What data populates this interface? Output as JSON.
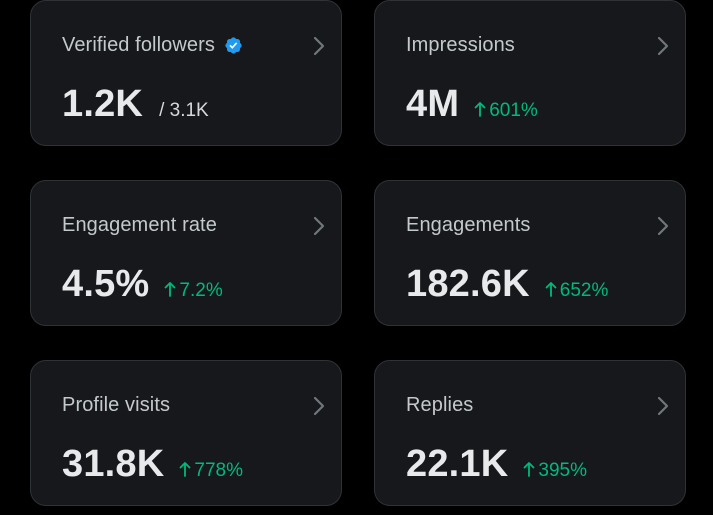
{
  "colors": {
    "background": "#000000",
    "card": "#16181c",
    "card_border": "#2f3336",
    "title": "#c4c9cc",
    "value": "#e7e9ea",
    "positive": "#00ba7c",
    "verified": "#1d9bf0"
  },
  "cards": [
    {
      "title": "Verified followers",
      "value": "1.2K",
      "sub": "/ 3.1K",
      "icon": "verified-badge-icon"
    },
    {
      "title": "Impressions",
      "value": "4M",
      "delta": "601%",
      "delta_icon": "arrow-up-icon"
    },
    {
      "title": "Engagement rate",
      "value": "4.5%",
      "delta": "7.2%",
      "delta_icon": "arrow-up-icon"
    },
    {
      "title": "Engagements",
      "value": "182.6K",
      "delta": "652%",
      "delta_icon": "arrow-up-icon"
    },
    {
      "title": "Profile visits",
      "value": "31.8K",
      "delta": "778%",
      "delta_icon": "arrow-up-icon"
    },
    {
      "title": "Replies",
      "value": "22.1K",
      "delta": "395%",
      "delta_icon": "arrow-up-icon"
    }
  ]
}
